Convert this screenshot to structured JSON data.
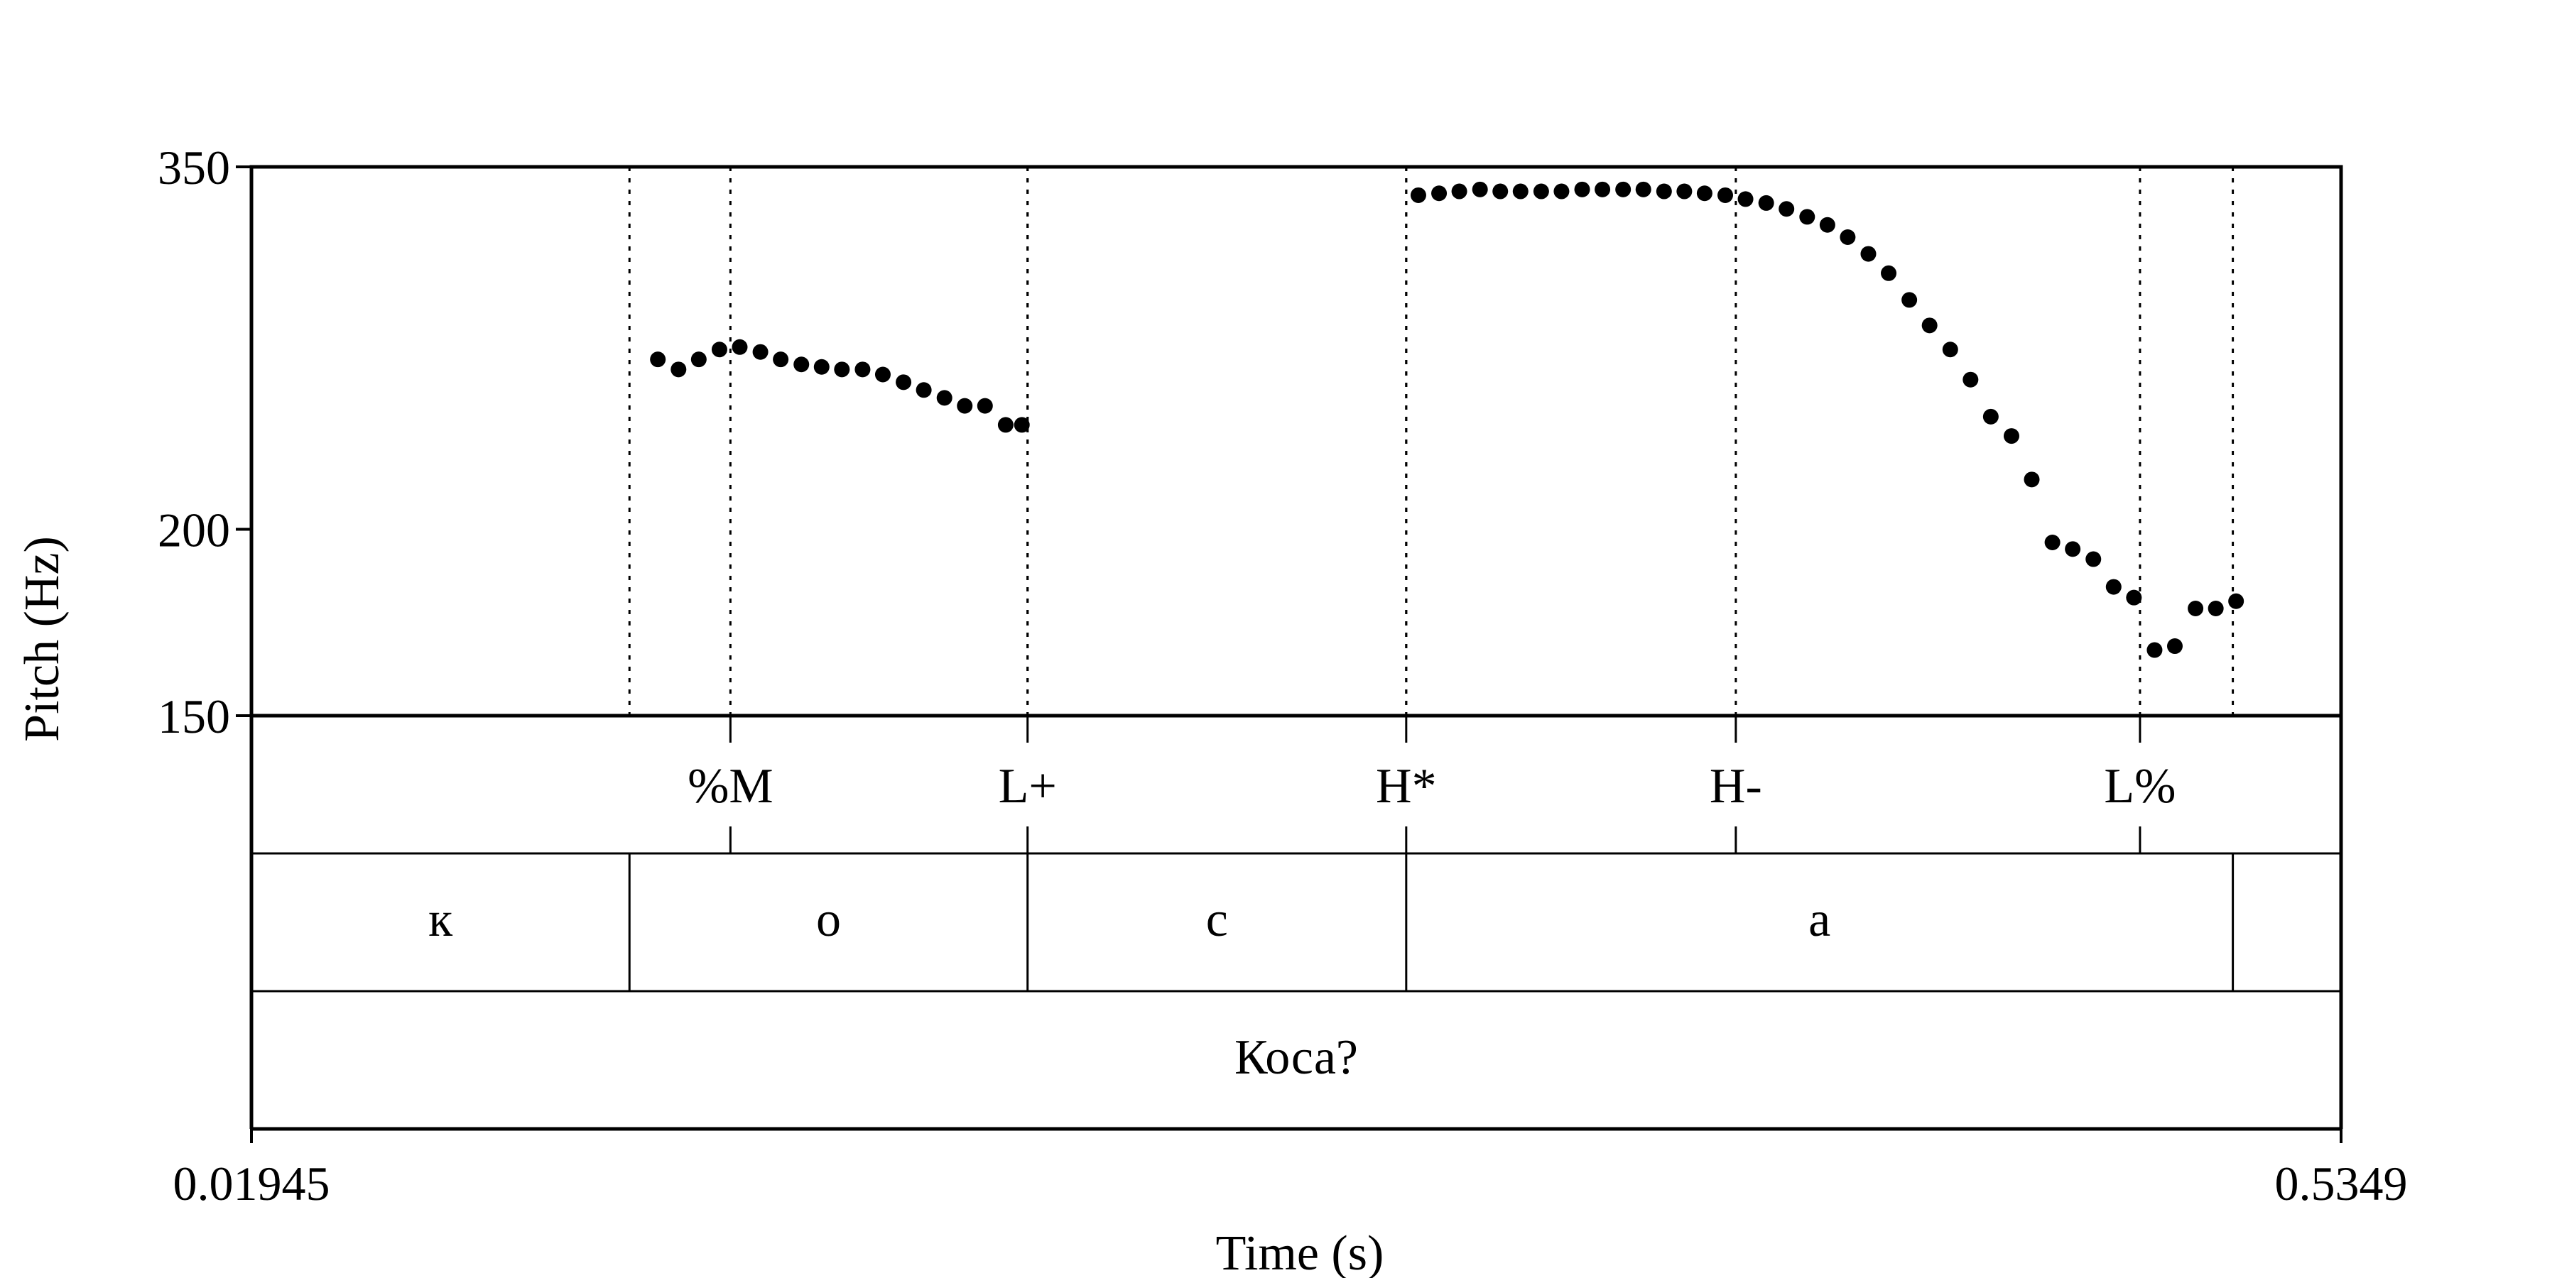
{
  "chart_data": {
    "type": "scatter",
    "xlabel": "Time (s)",
    "ylabel": "Pitch (Hz)",
    "xlim": [
      0.01945,
      0.5349
    ],
    "ylim": [
      150,
      350
    ],
    "y_scale": "log",
    "x_tick_labels": [
      "0.01945",
      "0.5349"
    ],
    "y_ticks": [
      350,
      200,
      150
    ],
    "y_tick_labels": [
      "350",
      "200",
      "150"
    ],
    "boundaries": [
      0.1127,
      0.2109,
      0.3043,
      0.5082
    ],
    "tone_tier": [
      {
        "t": 0.1376,
        "label": "%M"
      },
      {
        "t": 0.2109,
        "label": "L+"
      },
      {
        "t": 0.3043,
        "label": "H*"
      },
      {
        "t": 0.3856,
        "label": "H-"
      },
      {
        "t": 0.4853,
        "label": "L%"
      }
    ],
    "segment_tier": [
      {
        "start": 0.01945,
        "end": 0.1127,
        "label": "к"
      },
      {
        "start": 0.1127,
        "end": 0.2109,
        "label": "о"
      },
      {
        "start": 0.2109,
        "end": 0.3043,
        "label": "с"
      },
      {
        "start": 0.3043,
        "end": 0.5082,
        "label": "а"
      },
      {
        "start": 0.5082,
        "end": 0.5349,
        "label": ""
      }
    ],
    "word_tier": [
      {
        "start": 0.01945,
        "end": 0.5349,
        "label": "Коса?"
      }
    ],
    "points": [
      [
        0.1197,
        260
      ],
      [
        0.1248,
        256
      ],
      [
        0.1298,
        260
      ],
      [
        0.1349,
        264
      ],
      [
        0.1399,
        265
      ],
      [
        0.145,
        263
      ],
      [
        0.15,
        260
      ],
      [
        0.1551,
        258
      ],
      [
        0.1601,
        257
      ],
      [
        0.1651,
        256
      ],
      [
        0.1702,
        256
      ],
      [
        0.1752,
        254
      ],
      [
        0.1803,
        251
      ],
      [
        0.1853,
        248
      ],
      [
        0.1904,
        245
      ],
      [
        0.1954,
        242
      ],
      [
        0.2004,
        242
      ],
      [
        0.2055,
        235
      ],
      [
        0.2095,
        235
      ],
      [
        0.3073,
        335
      ],
      [
        0.3124,
        336
      ],
      [
        0.3174,
        337
      ],
      [
        0.3225,
        338
      ],
      [
        0.3275,
        337
      ],
      [
        0.3325,
        337
      ],
      [
        0.3376,
        337
      ],
      [
        0.3426,
        337
      ],
      [
        0.3477,
        338
      ],
      [
        0.3527,
        338
      ],
      [
        0.3578,
        338
      ],
      [
        0.3628,
        338
      ],
      [
        0.3679,
        337
      ],
      [
        0.3729,
        337
      ],
      [
        0.3779,
        336
      ],
      [
        0.383,
        335
      ],
      [
        0.388,
        333
      ],
      [
        0.3931,
        331
      ],
      [
        0.3981,
        328
      ],
      [
        0.4032,
        324
      ],
      [
        0.4082,
        320
      ],
      [
        0.4132,
        314
      ],
      [
        0.4183,
        306
      ],
      [
        0.4233,
        297
      ],
      [
        0.4284,
        285
      ],
      [
        0.4334,
        274
      ],
      [
        0.4385,
        264
      ],
      [
        0.4435,
        252
      ],
      [
        0.4485,
        238
      ],
      [
        0.4536,
        231
      ],
      [
        0.4586,
        216
      ],
      [
        0.4637,
        196
      ],
      [
        0.4687,
        194
      ],
      [
        0.4738,
        191
      ],
      [
        0.4788,
        183
      ],
      [
        0.4838,
        180
      ],
      [
        0.4889,
        166
      ],
      [
        0.4939,
        167
      ],
      [
        0.499,
        177
      ],
      [
        0.504,
        177
      ],
      [
        0.509,
        179
      ]
    ]
  }
}
